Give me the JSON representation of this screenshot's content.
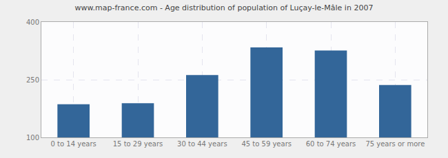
{
  "chart_data": {
    "type": "bar",
    "title": "www.map-france.com - Age distribution of population of Luçay-le-Mâle in 2007",
    "categories": [
      "0 to 14 years",
      "15 to 29 years",
      "30 to 44 years",
      "45 to 59 years",
      "60 to 74 years",
      "75 years or more"
    ],
    "values": [
      186,
      189,
      262,
      334,
      326,
      236
    ],
    "color": "#336699",
    "ylim": [
      100,
      400
    ],
    "yticks": [
      100,
      250,
      400
    ],
    "grid": true
  }
}
